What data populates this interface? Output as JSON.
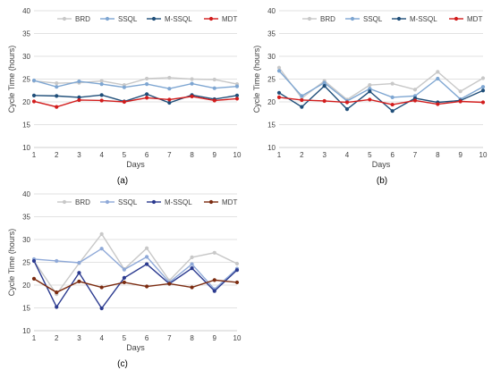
{
  "figure": {
    "panels": [
      "(a)",
      "(b)",
      "(c)"
    ]
  },
  "chart_data": [
    {
      "type": "line",
      "panel": "(a)",
      "xlabel": "Days",
      "ylabel": "Cycle Time (hours)",
      "x": [
        1,
        2,
        3,
        4,
        5,
        6,
        7,
        8,
        9,
        10
      ],
      "xlim": [
        1,
        10
      ],
      "ylim": [
        10,
        40
      ],
      "yticks": [
        10,
        15,
        20,
        25,
        30,
        35,
        40
      ],
      "grid": "horizontal",
      "legend": "top",
      "series": [
        {
          "name": "BRD",
          "color": "#c8c8c8",
          "values": [
            24.6,
            24.1,
            24.2,
            24.6,
            23.7,
            25.1,
            25.3,
            25.0,
            24.9,
            23.9
          ]
        },
        {
          "name": "SSQL",
          "color": "#7ea6d2",
          "values": [
            24.7,
            23.3,
            24.5,
            23.9,
            23.2,
            23.9,
            22.9,
            24.0,
            23.0,
            23.4
          ]
        },
        {
          "name": "M-SSQL",
          "color": "#1f4e79",
          "values": [
            21.4,
            21.3,
            21.0,
            21.5,
            20.1,
            21.7,
            19.8,
            21.5,
            20.6,
            21.4
          ]
        },
        {
          "name": "MDT",
          "color": "#d21c1c",
          "values": [
            20.1,
            18.9,
            20.4,
            20.3,
            20.0,
            20.9,
            20.5,
            21.2,
            20.3,
            20.7
          ]
        }
      ]
    },
    {
      "type": "line",
      "panel": "(b)",
      "xlabel": "Days",
      "ylabel": "Cycle Time (hours)",
      "x": [
        1,
        2,
        3,
        4,
        5,
        6,
        7,
        8,
        9,
        10
      ],
      "xlim": [
        1,
        10
      ],
      "ylim": [
        10,
        40
      ],
      "yticks": [
        10,
        15,
        20,
        25,
        30,
        35,
        40
      ],
      "grid": "horizontal",
      "legend": "top",
      "series": [
        {
          "name": "BRD",
          "color": "#c8c8c8",
          "values": [
            27.5,
            20.8,
            24.6,
            20.5,
            23.7,
            24.0,
            22.7,
            26.6,
            22.3,
            25.2
          ]
        },
        {
          "name": "SSQL",
          "color": "#7ea6d2",
          "values": [
            26.8,
            21.3,
            24.2,
            20.2,
            22.9,
            21.0,
            21.3,
            25.1,
            20.6,
            23.3
          ]
        },
        {
          "name": "M-SSQL",
          "color": "#1f4e79",
          "values": [
            22.0,
            18.9,
            23.5,
            18.4,
            22.3,
            18.0,
            20.8,
            19.9,
            20.3,
            22.5
          ]
        },
        {
          "name": "MDT",
          "color": "#d21c1c",
          "values": [
            21.0,
            20.4,
            20.2,
            19.9,
            20.5,
            19.4,
            20.3,
            19.5,
            20.1,
            19.9
          ]
        }
      ]
    },
    {
      "type": "line",
      "panel": "(c)",
      "xlabel": "Days",
      "ylabel": "Cycle Time (hours)",
      "x": [
        1,
        2,
        3,
        4,
        5,
        6,
        7,
        8,
        9,
        10
      ],
      "xlim": [
        1,
        10
      ],
      "ylim": [
        10,
        40
      ],
      "yticks": [
        10,
        15,
        20,
        25,
        30,
        35,
        40
      ],
      "grid": "horizontal",
      "legend": "top",
      "series": [
        {
          "name": "BRD",
          "color": "#c8c8c8",
          "values": [
            25.3,
            18.0,
            24.8,
            31.2,
            23.5,
            28.1,
            21.0,
            26.1,
            27.1,
            24.7
          ]
        },
        {
          "name": "SSQL",
          "color": "#8fa9d8",
          "values": [
            25.7,
            25.3,
            24.9,
            28.0,
            23.4,
            26.2,
            20.6,
            24.6,
            19.1,
            23.6
          ]
        },
        {
          "name": "M-SSQL",
          "color": "#2b3a8f",
          "values": [
            25.3,
            15.2,
            22.7,
            14.9,
            21.6,
            24.6,
            20.3,
            23.7,
            18.7,
            23.3
          ]
        },
        {
          "name": "MDT",
          "color": "#7b2b10",
          "values": [
            21.4,
            18.4,
            20.8,
            19.5,
            20.6,
            19.7,
            20.3,
            19.5,
            21.1,
            20.6
          ]
        }
      ]
    }
  ]
}
